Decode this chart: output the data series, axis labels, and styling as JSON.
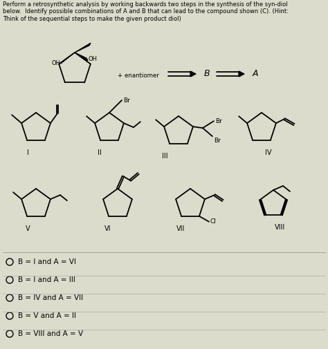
{
  "title_text": "Perform a retrosynthetic analysis by working backwards two steps in the synthesis of the syn-diol\nbelow.  Identify possible combinations of A and B that can lead to the compound shown (C). (Hint:\nThink of the sequential steps to make the given product diol)",
  "background_color": "#dcdccc",
  "answer_options": [
    "B = I and A = VI",
    "B = I and A = III",
    "B = IV and A = VII",
    "B = V and A = II",
    "B = VIII and A = V"
  ],
  "labels_row1": [
    "I",
    "II",
    "III",
    "IV"
  ],
  "labels_row2": [
    "V",
    "VI",
    "VII",
    "VIII"
  ],
  "arrow_label_b": "B",
  "arrow_label_a": "A",
  "enantiomer_text": "+ enantiomer",
  "fig_width": 4.74,
  "fig_height": 5.05,
  "dpi": 100
}
